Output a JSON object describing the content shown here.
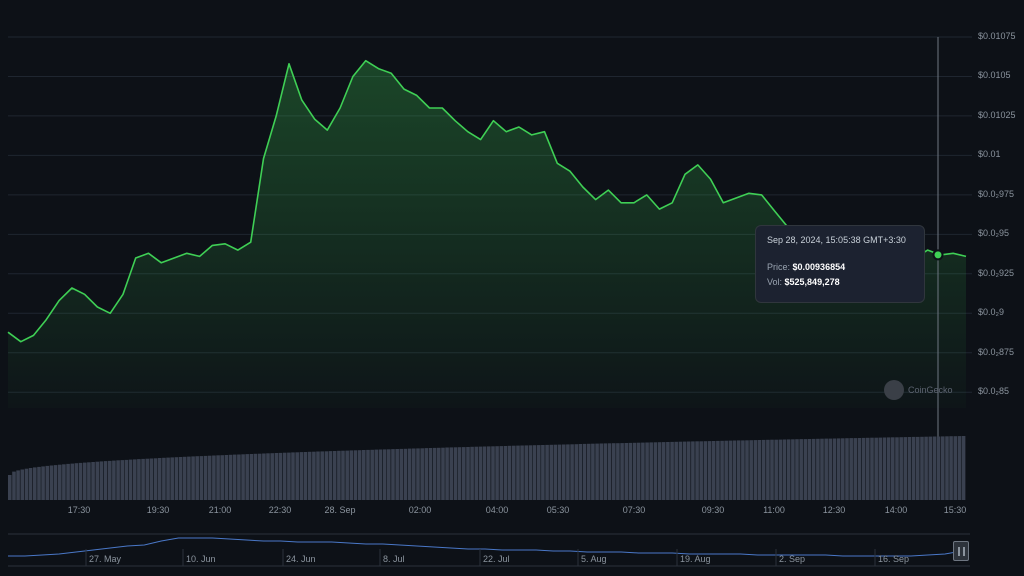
{
  "chart_data": {
    "type": "area",
    "ylim": [
      0.0084,
      0.01075
    ],
    "yticks": [
      {
        "value": 0.0085,
        "label": "$0.0₂85"
      },
      {
        "value": 0.00875,
        "label": "$0.0₂875"
      },
      {
        "value": 0.009,
        "label": "$0.0₂9"
      },
      {
        "value": 0.00925,
        "label": "$0.0₂925"
      },
      {
        "value": 0.0095,
        "label": "$0.0₂95"
      },
      {
        "value": 0.00975,
        "label": "$0.0₂975"
      },
      {
        "value": 0.01,
        "label": "$0.01"
      },
      {
        "value": 0.01025,
        "label": "$0.01025"
      },
      {
        "value": 0.0105,
        "label": "$0.0105"
      },
      {
        "value": 0.01075,
        "label": "$0.01075"
      }
    ],
    "xticks": [
      "17:30",
      "19:30",
      "21:00",
      "22:30",
      "28. Sep",
      "02:00",
      "04:00",
      "05:30",
      "07:30",
      "09:30",
      "11:00",
      "12:30",
      "14:00",
      "15:30"
    ],
    "price": [
      0.00888,
      0.00882,
      0.00886,
      0.00896,
      0.00908,
      0.00916,
      0.00912,
      0.00904,
      0.009,
      0.00912,
      0.00935,
      0.00938,
      0.00932,
      0.00935,
      0.00938,
      0.00936,
      0.00943,
      0.00944,
      0.0094,
      0.00945,
      0.00998,
      0.01025,
      0.01058,
      0.01035,
      0.01023,
      0.01016,
      0.0103,
      0.0105,
      0.0106,
      0.01055,
      0.01052,
      0.01042,
      0.01038,
      0.0103,
      0.0103,
      0.01022,
      0.01015,
      0.0101,
      0.01022,
      0.01015,
      0.01018,
      0.01013,
      0.01015,
      0.00995,
      0.0099,
      0.0098,
      0.00972,
      0.00978,
      0.0097,
      0.0097,
      0.00975,
      0.00966,
      0.0097,
      0.00988,
      0.00994,
      0.00985,
      0.0097,
      0.00973,
      0.00976,
      0.00975,
      0.00965,
      0.00955,
      0.00947,
      0.00945,
      0.0094,
      0.00935,
      0.00941,
      0.00932,
      0.00933,
      0.00935,
      0.00937,
      0.00935,
      0.0094,
      0.00937,
      0.00938,
      0.00936
    ],
    "volume_bars": 230,
    "navigator_dates": [
      "27. May",
      "10. Jun",
      "24. Jun",
      "8. Jul",
      "22. Jul",
      "5. Aug",
      "19. Aug",
      "2. Sep",
      "16. Sep"
    ],
    "colors": {
      "line": "#3fcf55",
      "grid": "#1f2630",
      "volume": "#3a4150",
      "navigator": "#4a78c8"
    }
  },
  "tooltip": {
    "timestamp": "Sep 28, 2024, 15:05:38 GMT+3:30",
    "price_label": "Price:",
    "price_value": "$0.00936854",
    "vol_label": "Vol:",
    "vol_value": "$525,849,278"
  },
  "watermark": "CoinGecko"
}
